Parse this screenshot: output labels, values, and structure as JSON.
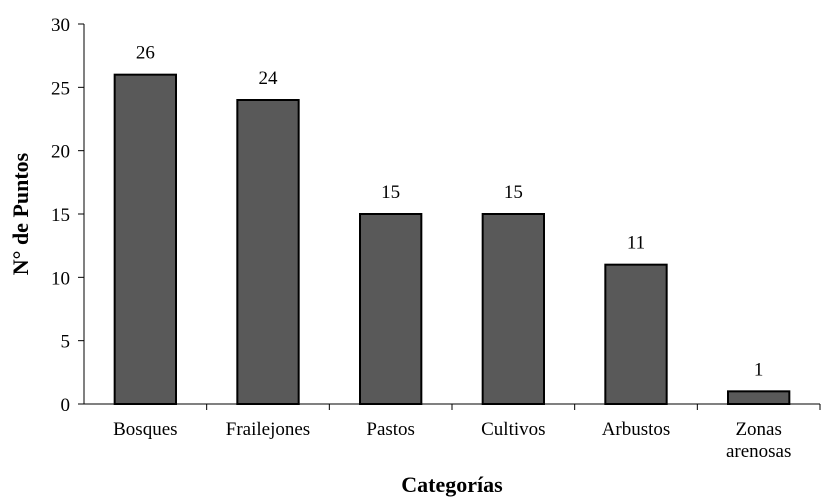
{
  "chart_data": {
    "type": "bar",
    "title": "",
    "xlabel": "Categorías",
    "ylabel": "N° de Puntos",
    "categories": [
      [
        "Bosques"
      ],
      [
        "Frailejones"
      ],
      [
        "Pastos"
      ],
      [
        "Cultivos"
      ],
      [
        "Arbustos"
      ],
      [
        "Zonas",
        "arenosas"
      ]
    ],
    "values": [
      26,
      24,
      15,
      15,
      11,
      1
    ],
    "ylim": [
      0,
      30
    ],
    "yticks": [
      0,
      5,
      10,
      15,
      20,
      25,
      30
    ],
    "data_labels": true,
    "grid": false,
    "legend": "none",
    "colors": {
      "bar_fill": "#595959",
      "bar_stroke": "#000000",
      "axis": "#000000"
    }
  }
}
